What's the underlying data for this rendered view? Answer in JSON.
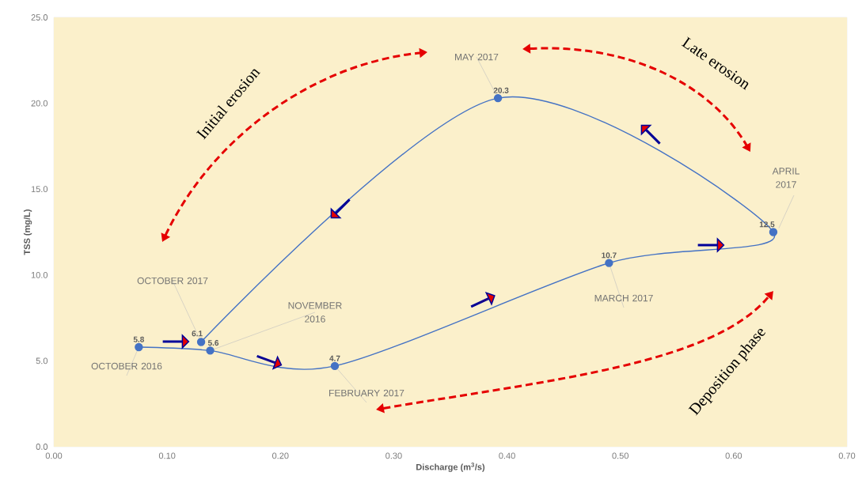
{
  "chart_data": {
    "type": "line",
    "xlabel": "Discharge (m$^{3}$/s)",
    "ylabel": "TSS (mg/L)",
    "xlim": [
      0,
      0.7
    ],
    "ylim": [
      0,
      25
    ],
    "xticks": [
      {
        "value": 0,
        "label": "0.00"
      },
      {
        "value": 0.1,
        "label": "0.10"
      },
      {
        "value": 0.2,
        "label": "0.20"
      },
      {
        "value": 0.3,
        "label": "0.30"
      },
      {
        "value": 0.4,
        "label": "0.40"
      },
      {
        "value": 0.5,
        "label": "0.50"
      },
      {
        "value": 0.6,
        "label": "0.60"
      },
      {
        "value": 0.7,
        "label": "0.70"
      }
    ],
    "yticks": [
      {
        "value": 0,
        "label": "0.0"
      },
      {
        "value": 5,
        "label": "5.0"
      },
      {
        "value": 10,
        "label": "10.0"
      },
      {
        "value": 15,
        "label": "15.0"
      },
      {
        "value": 20,
        "label": "20.0"
      },
      {
        "value": 25,
        "label": "25.0"
      }
    ],
    "series": [
      {
        "color": "#4472c4",
        "x": [
          0.075,
          0.138,
          0.248,
          0.49,
          0.635,
          0.392,
          0.13
        ],
        "values": [
          5.8,
          5.6,
          4.7,
          10.7,
          12.5,
          20.3,
          6.1
        ]
      }
    ],
    "marker": "circle",
    "line_style": "solid",
    "data_labels": true,
    "grid": false,
    "annotations": [
      {
        "text": "OCTOBER 2016",
        "x": 0.075,
        "y": 5.8
      },
      {
        "text": "NOVEMBER 2016",
        "x": 0.138,
        "y": 5.6
      },
      {
        "text": "FEBRUARY 2017",
        "x": 0.248,
        "y": 4.7
      },
      {
        "text": "MARCH 2017",
        "x": 0.49,
        "y": 10.7
      },
      {
        "text": "APRIL 2017",
        "x": 0.635,
        "y": 12.5
      },
      {
        "text": "MAY 2017",
        "x": 0.392,
        "y": 20.3
      },
      {
        "text": "OCTOBER 2017",
        "x": 0.13,
        "y": 6.1
      },
      "Initial erosion",
      "Late erosion",
      "Deposition phase"
    ]
  }
}
